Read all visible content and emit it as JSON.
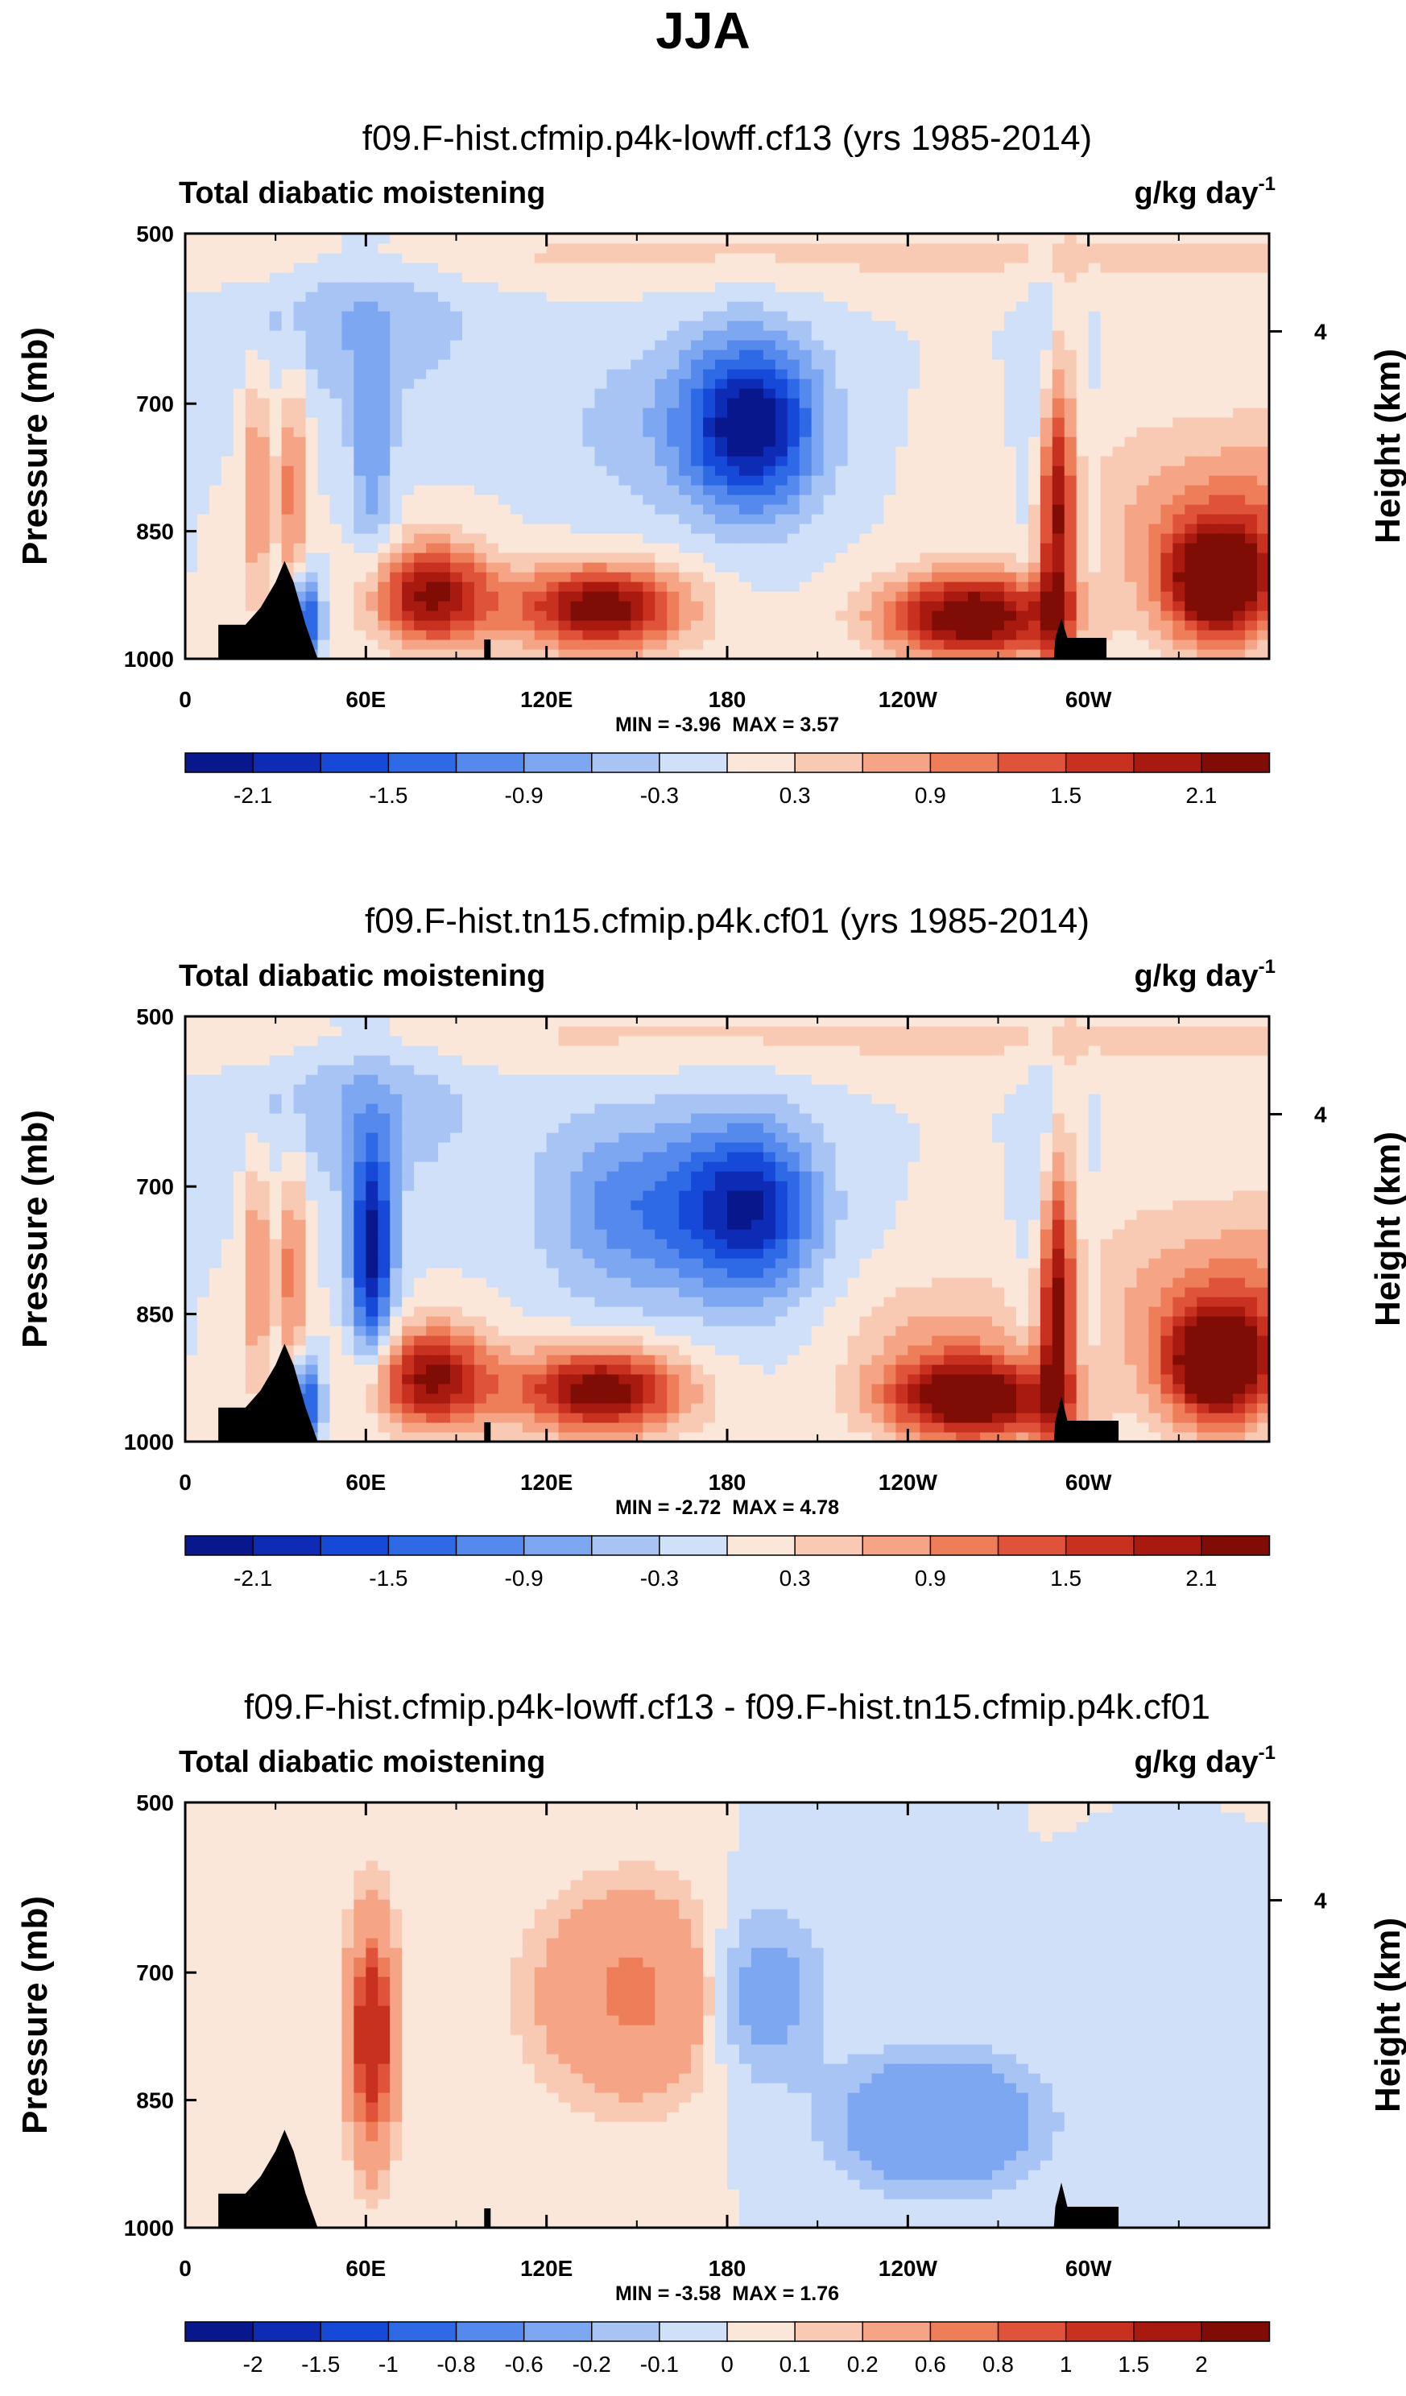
{
  "figure": {
    "title": "JJA"
  },
  "colormap": [
    "#08178c",
    "#0d2bb4",
    "#1749d8",
    "#2f6ae6",
    "#5589ec",
    "#7da7f0",
    "#a7c4f4",
    "#cfe0f8",
    "#fbe7da",
    "#f9cab3",
    "#f5a585",
    "#ee7d59",
    "#e0533b",
    "#c8301f",
    "#a81a10",
    "#7f0d06"
  ],
  "chart_data": [
    {
      "type": "heatmap",
      "title": "f09.F-hist.cfmip.p4k-lowff.cf13 (yrs 1985-2014)",
      "left_string": "Total diabatic moistening",
      "units": {
        "base": "g/kg day",
        "exponent": "-1"
      },
      "ylabel": "Pressure (mb)",
      "ylabel_right": "Height (km)",
      "yticks": [
        "500",
        "700",
        "850",
        "1000"
      ],
      "yticks_right": [
        "4"
      ],
      "xticks": [
        "0",
        "60E",
        "120E",
        "180",
        "120W",
        "60W"
      ],
      "ylim": [
        1000,
        500
      ],
      "xlim": [
        0,
        360
      ],
      "min_label": "MIN =  -3.96",
      "max_label": "MAX =   3.57",
      "min": -3.96,
      "max": 3.57,
      "colorbar_labels": [
        "-2.1",
        "-1.5",
        "-0.9",
        "-0.3",
        "0.3",
        "0.9",
        "1.5",
        "2.1"
      ],
      "colorbar_levels": [
        -2.1,
        -1.8,
        -1.5,
        -1.2,
        -0.9,
        -0.6,
        -0.3,
        0,
        0.3,
        0.6,
        0.9,
        1.2,
        1.5,
        1.8,
        2.1
      ]
    },
    {
      "type": "heatmap",
      "title": "f09.F-hist.tn15.cfmip.p4k.cf01 (yrs 1985-2014)",
      "left_string": "Total diabatic moistening",
      "units": {
        "base": "g/kg day",
        "exponent": "-1"
      },
      "ylabel": "Pressure (mb)",
      "ylabel_right": "Height (km)",
      "yticks": [
        "500",
        "700",
        "850",
        "1000"
      ],
      "yticks_right": [
        "4"
      ],
      "xticks": [
        "0",
        "60E",
        "120E",
        "180",
        "120W",
        "60W"
      ],
      "ylim": [
        1000,
        500
      ],
      "xlim": [
        0,
        360
      ],
      "min_label": "MIN =  -2.72",
      "max_label": "MAX =   4.78",
      "min": -2.72,
      "max": 4.78,
      "colorbar_labels": [
        "-2.1",
        "-1.5",
        "-0.9",
        "-0.3",
        "0.3",
        "0.9",
        "1.5",
        "2.1"
      ],
      "colorbar_levels": [
        -2.1,
        -1.8,
        -1.5,
        -1.2,
        -0.9,
        -0.6,
        -0.3,
        0,
        0.3,
        0.6,
        0.9,
        1.2,
        1.5,
        1.8,
        2.1
      ]
    },
    {
      "type": "heatmap",
      "title": "f09.F-hist.cfmip.p4k-lowff.cf13 - f09.F-hist.tn15.cfmip.p4k.cf01",
      "left_string": "Total diabatic moistening",
      "units": {
        "base": "g/kg day",
        "exponent": "-1"
      },
      "ylabel": "Pressure (mb)",
      "ylabel_right": "Height (km)",
      "yticks": [
        "500",
        "700",
        "850",
        "1000"
      ],
      "yticks_right": [
        "4"
      ],
      "xticks": [
        "0",
        "60E",
        "120E",
        "180",
        "120W",
        "60W"
      ],
      "ylim": [
        1000,
        500
      ],
      "xlim": [
        0,
        360
      ],
      "min_label": "MIN =  -3.58",
      "max_label": "MAX =   1.76",
      "min": -3.58,
      "max": 1.76,
      "colorbar_labels": [
        "-2",
        "-1.5",
        "-1",
        "-0.8",
        "-0.6",
        "-0.2",
        "-0.1",
        "0",
        "0.1",
        "0.2",
        "0.6",
        "0.8",
        "1",
        "1.5",
        "2"
      ],
      "colorbar_levels": [
        -2,
        -1.5,
        -1,
        -0.8,
        -0.6,
        -0.2,
        -0.1,
        0,
        0.1,
        0.2,
        0.6,
        0.8,
        1,
        1.5,
        2
      ]
    }
  ]
}
